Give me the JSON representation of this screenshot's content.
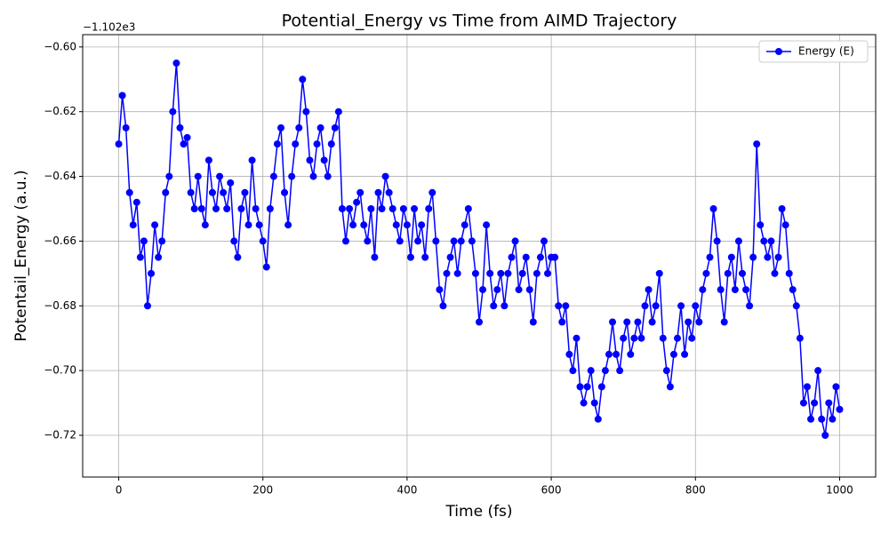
{
  "chart_data": {
    "type": "line",
    "title": "Potential_Energy vs Time from AIMD Trajectory",
    "x_label": "Time (fs)",
    "y_label": "Potentail_Energy (a.u.)",
    "y_offset_label": "−1.102e3",
    "xlim": [
      -50,
      1050
    ],
    "ylim": [
      -0.7329,
      -0.5962
    ],
    "xticks": [
      0,
      200,
      400,
      600,
      800,
      1000
    ],
    "yticks": [
      {
        "value": -0.72,
        "label": "−0.72"
      },
      {
        "value": -0.7,
        "label": "−0.70"
      },
      {
        "value": -0.68,
        "label": "−0.68"
      },
      {
        "value": -0.66,
        "label": "−0.66"
      },
      {
        "value": -0.64,
        "label": "−0.64"
      },
      {
        "value": -0.62,
        "label": "−0.62"
      },
      {
        "value": -0.6,
        "label": "−0.60"
      }
    ],
    "grid": true,
    "legend_position": "upper-right",
    "x": [
      0,
      5,
      10,
      15,
      20,
      25,
      30,
      35,
      40,
      45,
      50,
      55,
      60,
      65,
      70,
      75,
      80,
      85,
      90,
      95,
      100,
      105,
      110,
      115,
      120,
      125,
      130,
      135,
      140,
      145,
      150,
      155,
      160,
      165,
      170,
      175,
      180,
      185,
      190,
      195,
      200,
      205,
      210,
      215,
      220,
      225,
      230,
      235,
      240,
      245,
      250,
      255,
      260,
      265,
      270,
      275,
      280,
      285,
      290,
      295,
      300,
      305,
      310,
      315,
      320,
      325,
      330,
      335,
      340,
      345,
      350,
      355,
      360,
      365,
      370,
      375,
      380,
      385,
      390,
      395,
      400,
      405,
      410,
      415,
      420,
      425,
      430,
      435,
      440,
      445,
      450,
      455,
      460,
      465,
      470,
      475,
      480,
      485,
      490,
      495,
      500,
      505,
      510,
      515,
      520,
      525,
      530,
      535,
      540,
      545,
      550,
      555,
      560,
      565,
      570,
      575,
      580,
      585,
      590,
      595,
      600,
      605,
      610,
      615,
      620,
      625,
      630,
      635,
      640,
      645,
      650,
      655,
      660,
      665,
      670,
      675,
      680,
      685,
      690,
      695,
      700,
      705,
      710,
      715,
      720,
      725,
      730,
      735,
      740,
      745,
      750,
      755,
      760,
      765,
      770,
      775,
      780,
      785,
      790,
      795,
      800,
      805,
      810,
      815,
      820,
      825,
      830,
      835,
      840,
      845,
      850,
      855,
      860,
      865,
      870,
      875,
      880,
      885,
      890,
      895,
      900,
      905,
      910,
      915,
      920,
      925,
      930,
      935,
      940,
      945,
      950,
      955,
      960,
      965,
      970,
      975,
      980,
      985,
      990,
      995,
      1000
    ],
    "series": [
      {
        "name": "Energy (E)",
        "color": "#0000ff",
        "values": [
          -0.63,
          -0.615,
          -0.625,
          -0.645,
          -0.655,
          -0.648,
          -0.665,
          -0.66,
          -0.68,
          -0.67,
          -0.655,
          -0.665,
          -0.66,
          -0.645,
          -0.64,
          -0.62,
          -0.605,
          -0.625,
          -0.63,
          -0.628,
          -0.645,
          -0.65,
          -0.64,
          -0.65,
          -0.655,
          -0.635,
          -0.645,
          -0.65,
          -0.64,
          -0.645,
          -0.65,
          -0.642,
          -0.66,
          -0.665,
          -0.65,
          -0.645,
          -0.655,
          -0.635,
          -0.65,
          -0.655,
          -0.66,
          -0.668,
          -0.65,
          -0.64,
          -0.63,
          -0.625,
          -0.645,
          -0.655,
          -0.64,
          -0.63,
          -0.625,
          -0.61,
          -0.62,
          -0.635,
          -0.64,
          -0.63,
          -0.625,
          -0.635,
          -0.64,
          -0.63,
          -0.625,
          -0.62,
          -0.65,
          -0.66,
          -0.65,
          -0.655,
          -0.648,
          -0.645,
          -0.655,
          -0.66,
          -0.65,
          -0.665,
          -0.645,
          -0.65,
          -0.64,
          -0.645,
          -0.65,
          -0.655,
          -0.66,
          -0.65,
          -0.655,
          -0.665,
          -0.65,
          -0.66,
          -0.655,
          -0.665,
          -0.65,
          -0.645,
          -0.66,
          -0.675,
          -0.68,
          -0.67,
          -0.665,
          -0.66,
          -0.67,
          -0.66,
          -0.655,
          -0.65,
          -0.66,
          -0.67,
          -0.685,
          -0.675,
          -0.655,
          -0.67,
          -0.68,
          -0.675,
          -0.67,
          -0.68,
          -0.67,
          -0.665,
          -0.66,
          -0.675,
          -0.67,
          -0.665,
          -0.675,
          -0.685,
          -0.67,
          -0.665,
          -0.66,
          -0.67,
          -0.665,
          -0.665,
          -0.68,
          -0.685,
          -0.68,
          -0.695,
          -0.7,
          -0.69,
          -0.705,
          -0.71,
          -0.705,
          -0.7,
          -0.71,
          -0.715,
          -0.705,
          -0.7,
          -0.695,
          -0.685,
          -0.695,
          -0.7,
          -0.69,
          -0.685,
          -0.695,
          -0.69,
          -0.685,
          -0.69,
          -0.68,
          -0.675,
          -0.685,
          -0.68,
          -0.67,
          -0.69,
          -0.7,
          -0.705,
          -0.695,
          -0.69,
          -0.68,
          -0.695,
          -0.685,
          -0.69,
          -0.68,
          -0.685,
          -0.675,
          -0.67,
          -0.665,
          -0.65,
          -0.66,
          -0.675,
          -0.685,
          -0.67,
          -0.665,
          -0.675,
          -0.66,
          -0.67,
          -0.675,
          -0.68,
          -0.665,
          -0.63,
          -0.655,
          -0.66,
          -0.665,
          -0.66,
          -0.67,
          -0.665,
          -0.65,
          -0.655,
          -0.67,
          -0.675,
          -0.68,
          -0.69,
          -0.71,
          -0.705,
          -0.715,
          -0.71,
          -0.7,
          -0.715,
          -0.72,
          -0.71,
          -0.715,
          -0.705,
          -0.712
        ]
      }
    ]
  }
}
